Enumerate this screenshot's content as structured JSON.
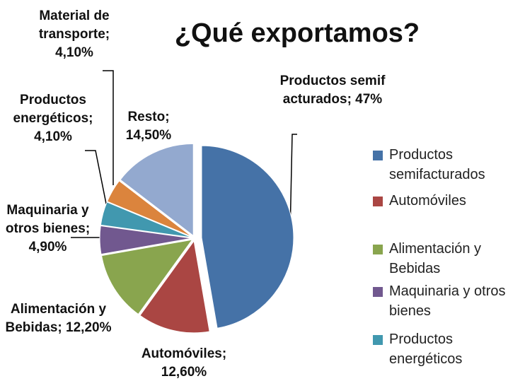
{
  "chart_data": {
    "type": "pie",
    "title": "¿Qué exportamos?",
    "categories": [
      "Productos semifacturados",
      "Automóviles",
      "Alimentación y Bebidas",
      "Maquinaria y otros bienes",
      "Productos energéticos",
      "Material de transporte",
      "Resto"
    ],
    "values": [
      47,
      12.6,
      12.2,
      4.9,
      4.1,
      4.1,
      14.5
    ],
    "value_labels": [
      "Productos semifacturados; 47%",
      "Automóviles; 12,60%",
      "Alimentación y Bebidas; 12,20%",
      "Maquinaria y otros bienes; 4,90%",
      "Productos energéticos; 4,10%",
      "Material de transporte; 4,10%",
      "Resto; 14,50%"
    ],
    "colors": [
      "#4572a7",
      "#aa4643",
      "#89a54e",
      "#71588f",
      "#4198af",
      "#db843d",
      "#93a9cf"
    ]
  }
}
